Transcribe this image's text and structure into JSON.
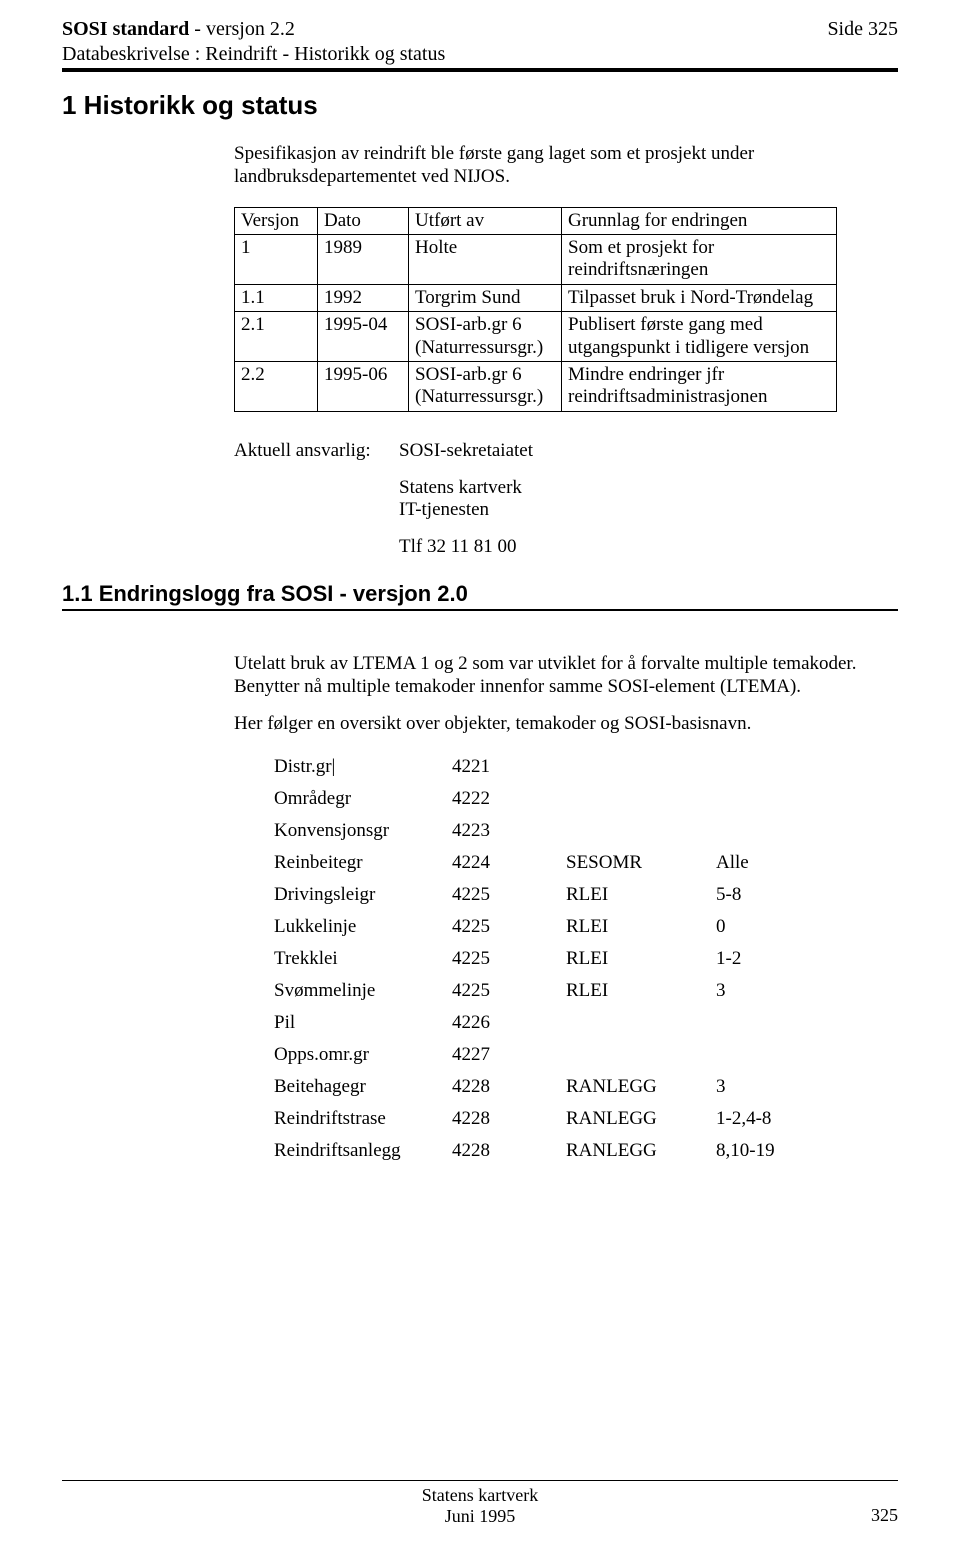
{
  "header": {
    "title_bold": "SOSI standard",
    "title_rest": " - versjon 2.2",
    "side_label": "Side 325",
    "subtitle": "Databeskrivelse : Reindrift - Historikk og status"
  },
  "section1": {
    "heading": "1  Historikk og status",
    "intro": "Spesifikasjon av reindrift ble første gang laget som et prosjekt under landbruksdepartementet ved NIJOS."
  },
  "version_table": {
    "headers": [
      "Versjon",
      "Dato",
      "Utført av",
      "Grunnlag for endringen"
    ],
    "rows": [
      [
        "1",
        "1989",
        "Holte",
        "Som et prosjekt for reindriftsnæringen"
      ],
      [
        "1.1",
        "1992",
        "Torgrim Sund",
        "Tilpasset bruk i Nord-Trøndelag"
      ],
      [
        "2.1",
        "1995-04",
        "SOSI-arb.gr 6\n(Naturressursgr.)",
        "Publisert første gang med utgangspunkt i tidligere versjon"
      ],
      [
        "2.2",
        "1995-06",
        "SOSI-arb.gr 6\n(Naturressursgr.)",
        "Mindre endringer jfr reindriftsadministrasjonen"
      ]
    ]
  },
  "contact": {
    "label": "Aktuell ansvarlig:",
    "name": "SOSI-sekretaiatet",
    "org1": "Statens kartverk",
    "org2": "IT-tjenesten",
    "phone": "Tlf 32 11 81 00"
  },
  "section11": {
    "heading": "1.1  Endringslogg fra SOSI - versjon 2.0",
    "p1": "Utelatt bruk av LTEMA 1 og 2 som var utviklet for å forvalte multiple temakoder. Benytter nå multiple temakoder innenfor samme SOSI-element (LTEMA).",
    "p2": "Her følger en oversikt over objekter, temakoder og SOSI-basisnavn."
  },
  "codes": {
    "rows": [
      [
        "Distr.gr|",
        "4221",
        "",
        ""
      ],
      [
        "Områdegr",
        "4222",
        "",
        ""
      ],
      [
        "Konvensjonsgr",
        "4223",
        "",
        ""
      ],
      [
        "Reinbeitegr",
        "4224",
        "SESOMR",
        "Alle"
      ],
      [
        "Drivingsleigr",
        "4225",
        "RLEI",
        "5-8"
      ],
      [
        "Lukkelinje",
        "4225",
        "RLEI",
        "0"
      ],
      [
        "Trekklei",
        "4225",
        "RLEI",
        "1-2"
      ],
      [
        "Svømmelinje",
        "4225",
        "RLEI",
        "3"
      ],
      [
        "Pil",
        "4226",
        "",
        ""
      ],
      [
        "Opps.omr.gr",
        "4227",
        "",
        ""
      ],
      [
        "Beitehagegr",
        "4228",
        "RANLEGG",
        "3"
      ],
      [
        "Reindriftstrase",
        "4228",
        "RANLEGG",
        "1-2,4-8"
      ],
      [
        "Reindriftsanlegg",
        "4228",
        "RANLEGG",
        "8,10-19"
      ]
    ]
  },
  "footer": {
    "line1": "Statens kartverk",
    "line2": "Juni  1995",
    "page": "325"
  }
}
